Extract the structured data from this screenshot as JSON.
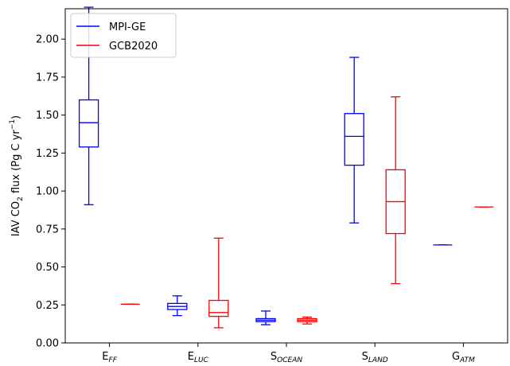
{
  "chart_data": {
    "type": "box",
    "ylabel": {
      "pre": "IAV CO",
      "sub1": "2",
      "mid": " flux (Pg C yr",
      "sup": "−1",
      "post": ")"
    },
    "ylim": [
      0,
      2.2
    ],
    "yticks": [
      "0.00",
      "0.25",
      "0.50",
      "0.75",
      "1.00",
      "1.25",
      "1.50",
      "1.75",
      "2.00"
    ],
    "categories": [
      {
        "base": "E",
        "sub": "FF"
      },
      {
        "base": "E",
        "sub": "LUC"
      },
      {
        "base": "S",
        "sub": "OCEAN"
      },
      {
        "base": "S",
        "sub": "LAND"
      },
      {
        "base": "G",
        "sub": "ATM"
      }
    ],
    "legend": {
      "placement": "top-left"
    },
    "series": [
      {
        "name": "MPI-GE",
        "color": "#0000ff",
        "boxes": [
          {
            "min": 0.91,
            "q1": 1.29,
            "median": 1.45,
            "q3": 1.6,
            "max": 2.21
          },
          {
            "min": 0.18,
            "q1": 0.22,
            "median": 0.24,
            "q3": 0.26,
            "max": 0.31
          },
          {
            "min": 0.12,
            "q1": 0.14,
            "median": 0.15,
            "q3": 0.16,
            "max": 0.21
          },
          {
            "min": 0.79,
            "q1": 1.17,
            "median": 1.36,
            "q3": 1.51,
            "max": 1.88
          },
          {
            "min": 0.645,
            "q1": 0.645,
            "median": 0.645,
            "q3": 0.645,
            "max": 0.645
          }
        ]
      },
      {
        "name": "GCB2020",
        "color": "#ff0000",
        "boxes": [
          {
            "min": 0.255,
            "q1": 0.255,
            "median": 0.255,
            "q3": 0.255,
            "max": 0.255
          },
          {
            "min": 0.1,
            "q1": 0.175,
            "median": 0.2,
            "q3": 0.28,
            "max": 0.69
          },
          {
            "min": 0.125,
            "q1": 0.14,
            "median": 0.15,
            "q3": 0.16,
            "max": 0.17
          },
          {
            "min": 0.39,
            "q1": 0.72,
            "median": 0.93,
            "q3": 1.14,
            "max": 1.62
          },
          {
            "min": 0.895,
            "q1": 0.895,
            "median": 0.895,
            "q3": 0.895,
            "max": 0.895
          }
        ]
      }
    ]
  }
}
